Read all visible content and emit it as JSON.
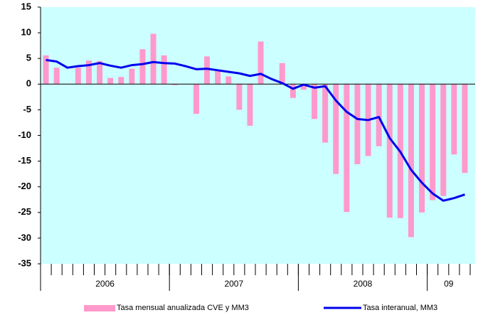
{
  "chart_data": {
    "type": "bar_line",
    "categories": [
      null,
      null,
      null,
      null,
      null,
      null,
      null,
      null,
      null,
      null,
      null,
      null,
      null,
      null,
      null,
      null,
      null,
      null,
      null,
      null,
      null,
      null,
      null,
      null,
      null,
      null,
      null,
      null,
      null,
      null,
      null,
      null,
      null,
      null,
      null,
      null,
      null,
      null,
      null,
      null
    ],
    "x_groups": [
      {
        "label": "2006",
        "count": 12
      },
      {
        "label": "2007",
        "count": 12
      },
      {
        "label": "2008",
        "count": 12
      },
      {
        "label": "09",
        "count": 4
      }
    ],
    "series": [
      {
        "name": "Tasa mensual anualizada CVE y MM3",
        "kind": "bar",
        "color": "#ff99cc",
        "values": [
          5.6,
          3.2,
          0,
          3.2,
          4.6,
          4.5,
          1.2,
          1.4,
          3.0,
          6.8,
          9.8,
          5.6,
          -0.2,
          0,
          -5.8,
          5.4,
          2.6,
          1.5,
          -5.0,
          -8.1,
          8.3,
          0,
          4.1,
          -2.7,
          -1.1,
          -6.8,
          -11.4,
          -17.5,
          -24.9,
          -15.6,
          -14.0,
          -12.1,
          -26.0,
          -26.1,
          -29.8,
          -25.0,
          -22.6,
          -21.8,
          -13.7,
          -17.3
        ]
      },
      {
        "name": "Tasa interanual, MM3",
        "kind": "line",
        "color": "#0000ee",
        "values": [
          4.7,
          4.4,
          3.2,
          3.5,
          3.7,
          4.1,
          3.6,
          3.2,
          3.7,
          3.9,
          4.3,
          4.1,
          4.0,
          3.5,
          2.9,
          3.0,
          2.7,
          2.4,
          2.1,
          1.6,
          2.0,
          1.0,
          0.2,
          -0.9,
          -0.1,
          -0.7,
          -0.4,
          -3.2,
          -5.4,
          -6.8,
          -7.0,
          -6.4,
          -10.5,
          -13.2,
          -16.7,
          -19.2,
          -21.3,
          -22.7,
          -22.2,
          -21.5
        ]
      }
    ],
    "ylim": [
      -35,
      15
    ],
    "yticks": [
      -35,
      -30,
      -25,
      -20,
      -15,
      -10,
      -5,
      0,
      5,
      10,
      15
    ],
    "background": "#ccffff",
    "legend": "bottom"
  }
}
